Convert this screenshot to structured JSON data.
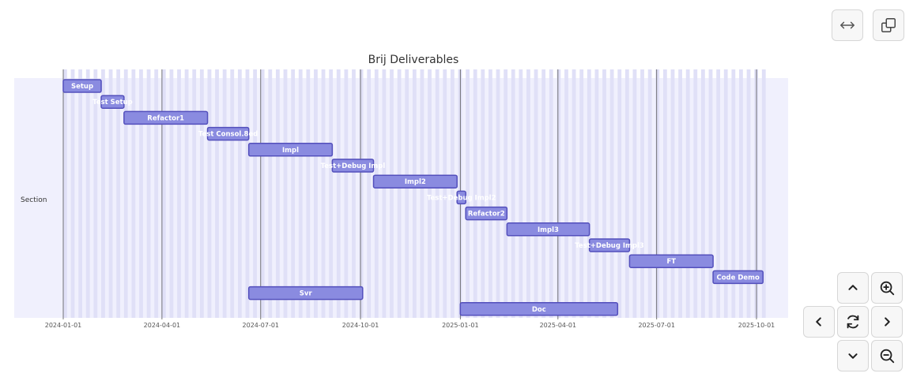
{
  "chart_data": {
    "type": "gantt",
    "title": "Brij Deliverables",
    "section": "Section",
    "x_domain": [
      "2023-12-28",
      "2025-10-10"
    ],
    "ticks": [
      "2024-01-01",
      "2024-04-01",
      "2024-07-01",
      "2024-10-01",
      "2025-01-01",
      "2025-04-01",
      "2025-07-01",
      "2025-10-01"
    ],
    "tasks": [
      {
        "name": "Setup",
        "start": "2024-01-01",
        "end": "2024-02-05"
      },
      {
        "name": "Test Setup",
        "start": "2024-02-05",
        "end": "2024-02-26"
      },
      {
        "name": "Refactor1",
        "start": "2024-02-26",
        "end": "2024-05-13"
      },
      {
        "name": "Test Consol.8ed",
        "start": "2024-05-13",
        "end": "2024-06-20"
      },
      {
        "name": "Impl",
        "start": "2024-06-20",
        "end": "2024-09-05"
      },
      {
        "name": "Test+Debug Impl",
        "start": "2024-09-05",
        "end": "2024-10-13"
      },
      {
        "name": "Impl2",
        "start": "2024-10-13",
        "end": "2024-12-29"
      },
      {
        "name": "Test+Debug Impl2",
        "start": "2024-12-29",
        "end": "2025-01-06"
      },
      {
        "name": "Refactor2",
        "start": "2025-01-06",
        "end": "2025-02-13"
      },
      {
        "name": "Impl3",
        "start": "2025-02-13",
        "end": "2025-04-30"
      },
      {
        "name": "Test+Debug Impl3",
        "start": "2025-04-30",
        "end": "2025-06-06"
      },
      {
        "name": "FT",
        "start": "2025-06-06",
        "end": "2025-08-22"
      },
      {
        "name": "Code Demo",
        "start": "2025-08-22",
        "end": "2025-10-07"
      },
      {
        "name": "Svr",
        "start": "2024-06-20",
        "end": "2024-10-03"
      },
      {
        "name": "Doc",
        "start": "2025-01-01",
        "end": "2025-05-26"
      }
    ]
  },
  "controls": {
    "fit_width": "arrows-horizontal-icon",
    "copy": "copy-icon",
    "pan_up": "chevron-up-icon",
    "zoom_in": "zoom-in-icon",
    "pan_left": "chevron-left-icon",
    "reset": "reset-icon",
    "pan_right": "chevron-right-icon",
    "pan_down": "chevron-down-icon",
    "zoom_out": "zoom-out-icon"
  },
  "colors": {
    "section_bg": "#f0f0fd",
    "stripe": "#e0e0f7",
    "bar_fill": "#8a8be0",
    "bar_stroke": "#534fbc",
    "grid": "#555555",
    "tick_text": "#555555"
  }
}
